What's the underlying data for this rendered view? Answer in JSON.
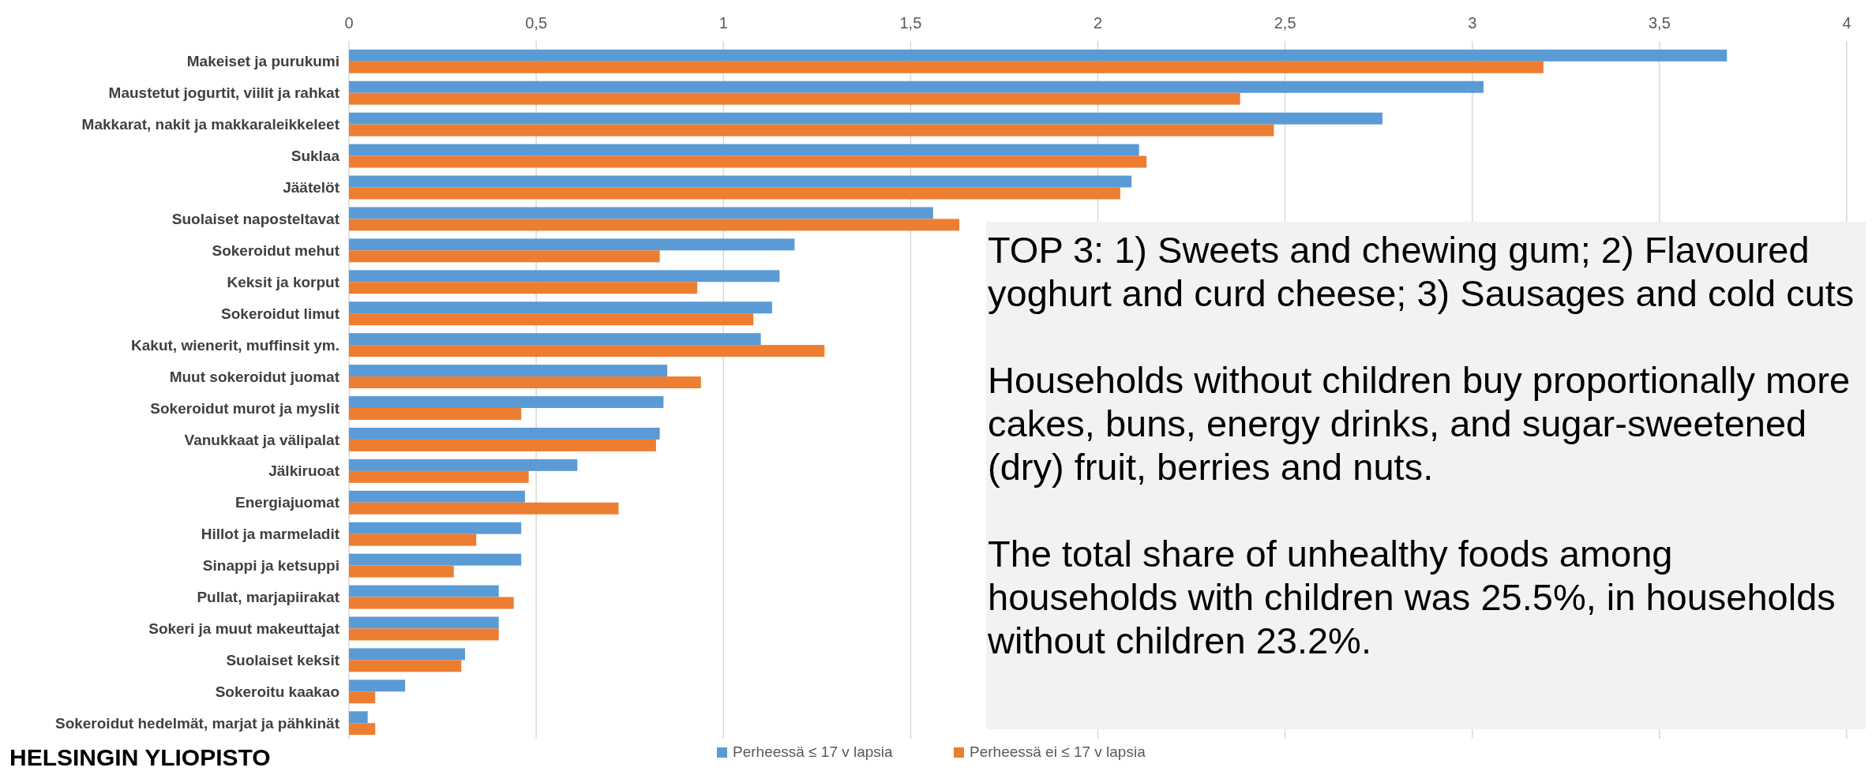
{
  "chart_data": {
    "type": "bar",
    "orientation": "horizontal",
    "categories": [
      "Makeiset ja purukumi",
      "Maustetut jogurtit, viilit ja rahkat",
      "Makkarat, nakit ja makkaraleikkeleet",
      "Suklaa",
      "Jäätelöt",
      "Suolaiset naposteltavat",
      "Sokeroidut mehut",
      "Keksit ja korput",
      "Sokeroidut limut",
      "Kakut, wienerit, muffinsit ym.",
      "Muut sokeroidut juomat",
      "Sokeroidut murot ja myslit",
      "Vanukkaat ja välipalat",
      "Jälkiruoat",
      "Energiajuomat",
      "Hillot ja marmeladit",
      "Sinappi ja ketsuppi",
      "Pullat, marjapiirakat",
      "Sokeri ja muut makeuttajat",
      "Suolaiset keksit",
      "Sokeroitu kaakao",
      "Sokeroidut hedelmät, marjat ja pähkinät"
    ],
    "series": [
      {
        "name": "Perheessä ≤ 17 v lapsia",
        "color": "#5b9bd5",
        "values": [
          3.68,
          3.03,
          2.76,
          2.11,
          2.09,
          1.56,
          1.19,
          1.15,
          1.13,
          1.1,
          0.85,
          0.84,
          0.83,
          0.61,
          0.47,
          0.46,
          0.46,
          0.4,
          0.4,
          0.31,
          0.15,
          0.05
        ]
      },
      {
        "name": "Perheessä ei ≤ 17 v lapsia",
        "color": "#ed7d31",
        "values": [
          3.19,
          2.38,
          2.47,
          2.13,
          2.06,
          1.63,
          0.83,
          0.93,
          1.08,
          1.27,
          0.94,
          0.46,
          0.82,
          0.48,
          0.72,
          0.34,
          0.28,
          0.44,
          0.4,
          0.3,
          0.07,
          0.07
        ]
      }
    ],
    "xlim": [
      0,
      4
    ],
    "xticks": [
      0,
      {
        "value": 0.5,
        "label": "0,5"
      },
      1,
      {
        "value": 1.5,
        "label": "1,5"
      },
      2,
      {
        "value": 2.5,
        "label": "2,5"
      },
      3,
      {
        "value": 3.5,
        "label": "3,5"
      },
      4
    ],
    "grid": "x",
    "legend": "bottom",
    "annotations": [
      "TOP 3: 1) Sweets and chewing gum; 2) Flavoured yoghurt and curd cheese; 3) Sausages and cold cuts",
      "Households without children buy proportionally more cakes, buns, energy drinks, and sugar-sweetened (dry) fruit, berries and nuts.",
      "The total share of unhealthy foods among households with children was 25.5%, in households without children 23.2%.",
      "HELSINGIN YLIOPISTO"
    ]
  }
}
